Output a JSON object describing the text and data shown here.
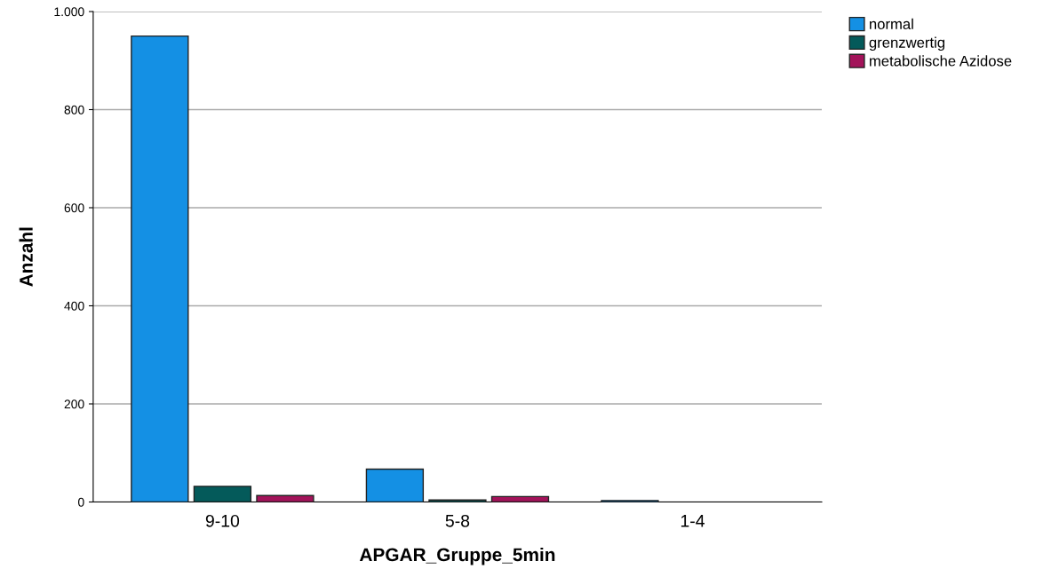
{
  "chart_data": {
    "type": "bar",
    "xlabel": "APGAR_Gruppe_5min",
    "ylabel": "Anzahl",
    "categories": [
      "9-10",
      "5-8",
      "1-4"
    ],
    "series": [
      {
        "name": "normal",
        "color": "#1490e4",
        "values": [
          950,
          67,
          3
        ]
      },
      {
        "name": "grenzwertig",
        "color": "#045a5a",
        "values": [
          32,
          4,
          null
        ]
      },
      {
        "name": "metabolische Azidose",
        "color": "#a3135a",
        "values": [
          13,
          11,
          null
        ]
      }
    ],
    "ylim": [
      0,
      1000
    ],
    "yticks": [
      0,
      200,
      400,
      600,
      800,
      {
        "value": 1000,
        "label": "1.000"
      }
    ],
    "grid": "y",
    "legend": "top right"
  }
}
